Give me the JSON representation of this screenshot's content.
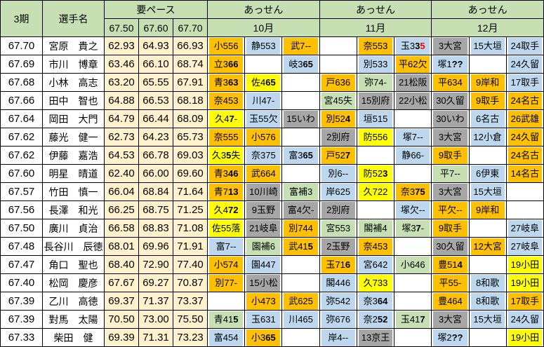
{
  "header": {
    "period": "3期",
    "player": "選手名",
    "pace": "要ペース",
    "pace_cols": [
      "67.50",
      "67.60",
      "67.70"
    ],
    "groups": [
      {
        "title": "あっせん",
        "month": "10月"
      },
      {
        "title": "あっせん",
        "month": "11月"
      },
      {
        "title": "あっせん",
        "month": "12月"
      }
    ]
  },
  "colors": {
    "orange": "#FFC000",
    "yellow": "#FFFF00",
    "blue": "#BDD7EE",
    "gray": "#A6A6A6",
    "green": "#C6E0B4",
    "pace_fill": "#FFF2CC",
    "header_fill": "#C6E0B4",
    "red_text": "#FF0000"
  },
  "rows": [
    {
      "period": "67.70",
      "name": "宮原　貴之",
      "pace": [
        "62.93",
        "64.93",
        "66.93"
      ],
      "cells": [
        {
          "pre": "小556",
          "bg": "orange"
        },
        {
          "pre": "静553",
          "bg": "blue"
        },
        {
          "pre": "武7--",
          "bg": "orange"
        },
        null,
        {
          "pre": "奈553",
          "bg": "orange"
        },
        {
          "pre": "玉3",
          "b": "3",
          "r": "5",
          "bg": "blue"
        },
        {
          "pre": "3大宮",
          "bg": "gray"
        },
        {
          "pre": "15大垣",
          "bg": "blue"
        },
        {
          "pre": "24取手",
          "bg": "blue"
        }
      ]
    },
    {
      "period": "67.69",
      "name": "市川　博章",
      "pace": [
        "63.46",
        "66.10",
        "68.74"
      ],
      "cells": [
        {
          "pre": "立3",
          "b": "66",
          "bg": "orange"
        },
        null,
        {
          "pre": "岐3",
          "b": "65",
          "bg": "blue"
        },
        null,
        {
          "pre": "別533",
          "bg": "blue"
        },
        {
          "pre": "平62欠",
          "bg": "orange"
        },
        {
          "pre": "塚1",
          "b": "??",
          "bg": "blue"
        },
        null,
        {
          "pre": "24久留",
          "bg": "blue"
        }
      ]
    },
    {
      "period": "67.68",
      "name": "小林　高志",
      "pace": [
        "63.20",
        "65.55",
        "67.91"
      ],
      "cells": [
        {
          "pre": "青3",
          "b": "63",
          "bg": "orange"
        },
        {
          "pre": "佐4",
          "b": "65",
          "bg": "yellow"
        },
        null,
        {
          "pre": "戸636",
          "bg": "orange"
        },
        {
          "pre": "弥74-",
          "bg": "green"
        },
        {
          "pre": "21松阪",
          "bg": "gray"
        },
        {
          "pre": "平634",
          "bg": "orange"
        },
        {
          "pre": "9岸和",
          "bg": "orange"
        },
        {
          "pre": "17取手",
          "bg": "blue"
        }
      ]
    },
    {
      "period": "67.66",
      "name": "田中　智也",
      "pace": [
        "64.88",
        "66.53",
        "68.18"
      ],
      "cells": [
        {
          "pre": "奈453",
          "bg": "orange"
        },
        {
          "pre": "川47-",
          "bg": "blue"
        },
        null,
        {
          "pre": "宮45失",
          "bg": "green"
        },
        {
          "pre": "15別府",
          "bg": "gray"
        },
        {
          "pre": "22小松",
          "bg": "gray"
        },
        {
          "pre": "30久留",
          "bg": "gray"
        },
        {
          "pre": "9取手",
          "bg": "orange"
        },
        {
          "pre": "24名古",
          "bg": "orange"
        }
      ]
    },
    {
      "period": "67.64",
      "name": "岡田　大門",
      "pace": [
        "64.79",
        "66.44",
        "68.09"
      ],
      "cells": [
        {
          "pre": "久4",
          "b": "7",
          "t": "-",
          "bg": "yellow"
        },
        {
          "pre": "玉55欠",
          "bg": "blue"
        },
        {
          "pre": "15いわ",
          "bg": "gray"
        },
        {
          "pre": "別52",
          "b": "4",
          "bg": "orange"
        },
        {
          "pre": "垣515",
          "bg": "blue"
        },
        null,
        {
          "pre": "30いわ",
          "bg": "gray"
        },
        {
          "pre": "6名古",
          "bg": "blue"
        },
        {
          "pre": "26武雄",
          "bg": "orange"
        }
      ]
    },
    {
      "period": "67.62",
      "name": "藤光　健一",
      "pace": [
        "62.73",
        "64.23",
        "65.73"
      ],
      "cells": [
        {
          "pre": "奈555",
          "bg": "orange"
        },
        {
          "pre": "小576",
          "bg": "orange"
        },
        null,
        {
          "pre": "2別府",
          "bg": "gray"
        },
        {
          "pre": "防556",
          "bg": "yellow"
        },
        {
          "pre": "塚7--",
          "bg": "blue"
        },
        {
          "pre": "3大宮",
          "bg": "gray"
        },
        {
          "pre": "12小倉",
          "bg": "blue"
        },
        {
          "pre": "24久留",
          "bg": "orange"
        }
      ]
    },
    {
      "period": "67.62",
      "name": "伊藤　嘉浩",
      "pace": [
        "64.53",
        "66.78",
        "69.03"
      ],
      "cells": [
        {
          "pre": "久3",
          "b": "5",
          "t": "失",
          "bg": "yellow"
        },
        {
          "pre": "奈375",
          "bg": "blue"
        },
        {
          "pre": "富3",
          "b": "65",
          "bg": "blue"
        },
        {
          "pre": "戸52",
          "b": "7",
          "bg": "orange"
        },
        null,
        {
          "pre": "静66-",
          "bg": "blue"
        },
        {
          "pre": "9取手",
          "bg": "orange"
        },
        null,
        {
          "pre": "24名古",
          "bg": "orange"
        }
      ]
    },
    {
      "period": "67.60",
      "name": "明星　晴道",
      "pace": [
        "62.40",
        "66.00",
        "69.60"
      ],
      "cells": [
        {
          "pre": "青3",
          "b": "46",
          "bg": "orange"
        },
        {
          "pre": "武664",
          "bg": "orange"
        },
        null,
        {
          "pre": "別6--",
          "bg": "blue"
        },
        {
          "pre": "防52",
          "b": "3",
          "bg": "yellow"
        },
        null,
        {
          "pre": "平7--",
          "bg": "green"
        },
        {
          "pre": "6伊東",
          "bg": "blue"
        },
        {
          "pre": "14名古",
          "bg": "orange"
        }
      ]
    },
    {
      "period": "67.57",
      "name": "竹田　慎一",
      "pace": [
        "66.04",
        "68.84",
        "71.64"
      ],
      "cells": [
        {
          "pre": "青7",
          "b": "13",
          "bg": "orange"
        },
        {
          "pre": "10川崎",
          "bg": "gray"
        },
        {
          "pre": "富補3",
          "bg": "green"
        },
        {
          "pre": "岸625",
          "bg": "blue"
        },
        {
          "pre": "久722",
          "bg": "yellow"
        },
        {
          "pre": "奈3",
          "b": "75",
          "bg": "orange"
        },
        {
          "pre": "3大宮",
          "bg": "gray"
        },
        {
          "pre": "15大垣",
          "bg": "blue"
        },
        null
      ]
    },
    {
      "period": "67.56",
      "name": "長澤　和光",
      "pace": [
        "66.25",
        "68.75",
        "71.25"
      ],
      "cells": [
        {
          "pre": "久4",
          "b": "72",
          "bg": "yellow"
        },
        {
          "pre": "9玉野",
          "bg": "gray"
        },
        {
          "pre": "富4欠-",
          "bg": "gray"
        },
        {
          "pre": "2別府",
          "bg": "gray"
        },
        null,
        {
          "pre": "塚欠--",
          "bg": "blue"
        },
        {
          "pre": "平欠--",
          "bg": "orange"
        },
        {
          "pre": "9岸和",
          "bg": "orange"
        },
        null
      ]
    },
    {
      "period": "67.50",
      "name": "廣川　貞治",
      "pace": [
        "66.58",
        "68.83",
        "71.08"
      ],
      "cells": [
        {
          "pre": "佐55落",
          "bg": "yellow"
        },
        {
          "pre": "21岐阜",
          "bg": "gray"
        },
        {
          "pre": "別744",
          "bg": "orange"
        },
        {
          "pre": "宮553",
          "bg": "green"
        },
        {
          "pre": "閣補4",
          "bg": "green"
        },
        {
          "pre": "塚3",
          "b": "7",
          "t": "-",
          "bg": "green"
        },
        {
          "pre": "9取手",
          "bg": "orange"
        },
        null,
        {
          "pre": "27岐阜",
          "bg": "blue"
        }
      ]
    },
    {
      "period": "67.48",
      "name": "長谷川　辰徳",
      "pace": [
        "68.01",
        "69.96",
        "71.91"
      ],
      "cells": [
        {
          "pre": "富7--",
          "bg": "blue"
        },
        {
          "pre": "園補6",
          "bg": "green"
        },
        {
          "pre": "武41",
          "b": "5",
          "bg": "orange"
        },
        {
          "pre": "2玉野",
          "bg": "gray"
        },
        {
          "pre": "奈453",
          "bg": "orange"
        },
        null,
        {
          "pre": "30久留",
          "bg": "gray"
        },
        {
          "pre": "12大宮",
          "bg": "orange"
        },
        {
          "pre": "27岐阜",
          "bg": "blue"
        }
      ]
    },
    {
      "period": "67.47",
      "name": "角口　聖也",
      "pace": [
        "68.40",
        "72.90",
        "77.40"
      ],
      "cells": [
        {
          "pre": "小574",
          "bg": "orange"
        },
        {
          "pre": "園447",
          "bg": "blue"
        },
        null,
        {
          "pre": "玉71",
          "b": "6",
          "bg": "orange"
        },
        {
          "pre": "宮642",
          "bg": "blue"
        },
        {
          "pre": "小646",
          "bg": "green"
        },
        {
          "pre": "豊51",
          "b": "4",
          "bg": "orange"
        },
        null,
        {
          "pre": "19小田",
          "bg": "yellow"
        }
      ]
    },
    {
      "period": "67.40",
      "name": "松岡　慶彦",
      "pace": [
        "67.67",
        "69.27",
        "70.87"
      ],
      "cells": [
        {
          "pre": "別77-",
          "bg": "orange"
        },
        {
          "pre": "15小松",
          "bg": "gray"
        },
        null,
        {
          "pre": "閣446",
          "bg": "blue"
        },
        {
          "pre": "久733",
          "bg": "yellow"
        },
        null,
        {
          "pre": "平55-",
          "bg": "orange"
        },
        {
          "pre": "8和歌",
          "bg": "blue"
        },
        {
          "pre": "19小田",
          "bg": "yellow"
        }
      ]
    },
    {
      "period": "67.39",
      "name": "乙川　高徳",
      "pace": [
        "69.37",
        "71.37",
        "73.37"
      ],
      "cells": [
        null,
        {
          "pre": "小473",
          "bg": "orange"
        },
        {
          "pre": "武625",
          "bg": "orange"
        },
        {
          "pre": "弥542",
          "bg": "blue"
        },
        {
          "pre": "奈3",
          "b": "64",
          "bg": "blue"
        },
        null,
        {
          "pre": "豊464",
          "bg": "orange"
        },
        {
          "pre": "8和歌",
          "bg": "blue"
        },
        {
          "pre": "17取手",
          "bg": "orange"
        }
      ]
    },
    {
      "period": "67.39",
      "name": "對馬　太陽",
      "pace": [
        "70.50",
        "73.00",
        "75.50"
      ],
      "cells": [
        {
          "pre": "青41",
          "b": "5",
          "bg": "green"
        },
        {
          "pre": "玉631",
          "bg": "blue"
        },
        {
          "pre": "川465",
          "bg": "blue"
        },
        {
          "pre": "弥676",
          "bg": "blue"
        },
        {
          "pre": "奈2",
          "b": "52",
          "bg": "blue"
        },
        {
          "pre": "玉41",
          "b": "7",
          "bg": "green"
        },
        {
          "pre": "3大宮",
          "bg": "gray"
        },
        {
          "pre": "15大垣",
          "bg": "blue"
        },
        {
          "pre": "24久留",
          "bg": "blue"
        }
      ]
    },
    {
      "period": "67.33",
      "name": "柴田　健",
      "pace": [
        "69.39",
        "71.31",
        "73.23"
      ],
      "cells": [
        {
          "pre": "富454",
          "bg": "blue"
        },
        {
          "pre": "小3",
          "b": "65",
          "bg": "orange"
        },
        null,
        {
          "pre": "岸4--",
          "bg": "blue"
        },
        {
          "pre": "13京王",
          "bg": "gray"
        },
        null,
        {
          "pre": "塚2",
          "b": "??",
          "bg": "blue"
        },
        null,
        {
          "pre": "19小田",
          "bg": "yellow"
        }
      ]
    }
  ]
}
